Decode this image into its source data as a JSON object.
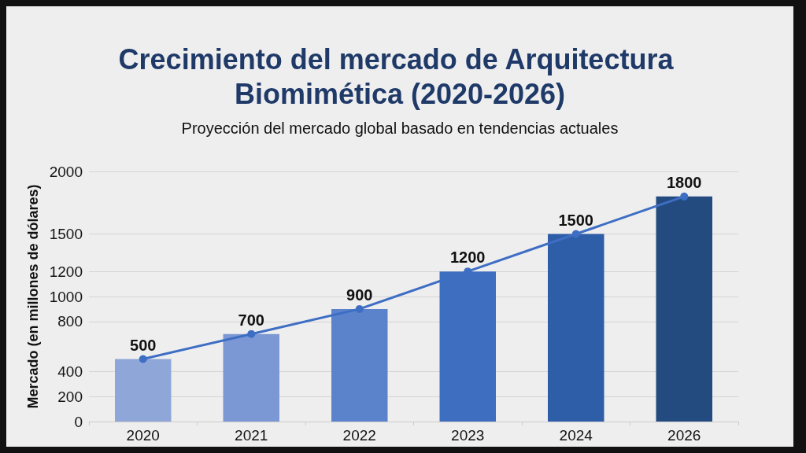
{
  "chart_data": {
    "type": "bar",
    "title": "Crecimiento del mercado de Arquitectura Biomimética (2020-2026)",
    "subtitle": "Proyección del mercado global basado en tendencias actuales",
    "ylabel": "Mercado (en millones de dólares)",
    "categories": [
      "2020",
      "2021",
      "2022",
      "2023",
      "2024",
      "2026"
    ],
    "series": [
      {
        "colors": [
          "#8fa6d8",
          "#7b98d4",
          "#5b83cc",
          "#3d6ebf",
          "#2f5ea8",
          "#234b80"
        ],
        "values": [
          500,
          700,
          900,
          1200,
          1500,
          1800
        ],
        "value_labels": [
          "500",
          "700",
          "900",
          "1200",
          "1500",
          "1800"
        ]
      },
      {
        "type": "line",
        "color": "#3d6ec4",
        "values": [
          500,
          700,
          900,
          1200,
          1500,
          1800
        ],
        "marker": "circle"
      }
    ],
    "ylim": [
      0,
      2000
    ],
    "yticks": [
      0,
      200,
      400,
      800,
      1000,
      1200,
      1500,
      2000
    ],
    "grid": "y"
  }
}
